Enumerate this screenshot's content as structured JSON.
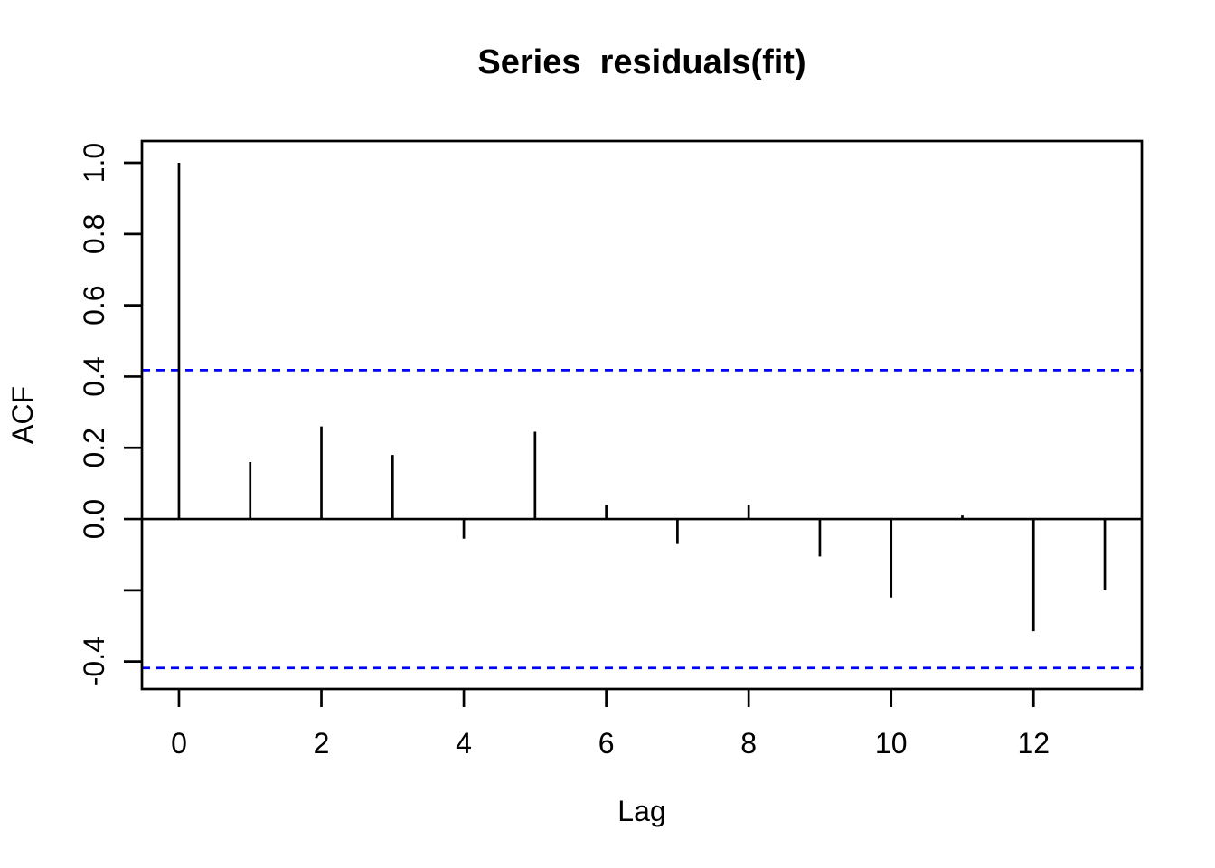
{
  "figure": {
    "background_color": "#ffffff",
    "foreground_color": "#000000"
  },
  "chart_data": {
    "type": "bar",
    "subtype": "acf-lollipop",
    "title": "Series  residuals(fit)",
    "xlabel": "Lag",
    "ylabel": "ACF",
    "x": [
      0,
      1,
      2,
      3,
      4,
      5,
      6,
      7,
      8,
      9,
      10,
      11,
      12,
      13
    ],
    "values": [
      1.0,
      0.16,
      0.26,
      0.18,
      -0.055,
      0.245,
      0.04,
      -0.07,
      0.04,
      -0.105,
      -0.22,
      0.01,
      -0.315,
      -0.2
    ],
    "confidence_bounds": {
      "upper": 0.418,
      "lower": -0.418,
      "line_style": "dashed",
      "color": "#0000ff"
    },
    "zero_line": true,
    "grid": false,
    "legend": null,
    "xlim": [
      -0.52,
      13.52
    ],
    "ylim": [
      -0.477,
      1.061
    ],
    "x_ticks": [
      {
        "value": 0,
        "label": "0"
      },
      {
        "value": 2,
        "label": "2"
      },
      {
        "value": 4,
        "label": "4"
      },
      {
        "value": 6,
        "label": "6"
      },
      {
        "value": 8,
        "label": "8"
      },
      {
        "value": 10,
        "label": "10"
      },
      {
        "value": 12,
        "label": "12"
      }
    ],
    "y_ticks": [
      {
        "value": 1.0,
        "label": "1.0"
      },
      {
        "value": 0.8,
        "label": "0.8"
      },
      {
        "value": 0.6,
        "label": "0.6"
      },
      {
        "value": 0.4,
        "label": "0.4"
      },
      {
        "value": 0.2,
        "label": "0.2"
      },
      {
        "value": 0.0,
        "label": "0.0"
      },
      {
        "value": -0.2,
        "label": ""
      },
      {
        "value": -0.4,
        "label": "-0.4"
      }
    ],
    "bar_color": "#000000",
    "axis_color": "#000000"
  }
}
